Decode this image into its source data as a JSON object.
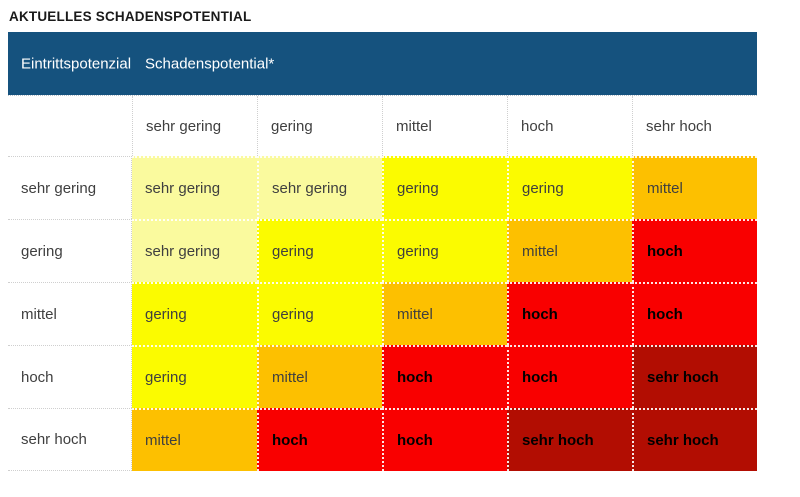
{
  "title": "AKTUELLES SCHADENSPOTENTIAL",
  "table": {
    "header": {
      "background": "#15527E",
      "text_color": "#ffffff",
      "col1_label": "Eintrittspotenzial",
      "col2_label": "Schadenspotential*"
    },
    "column_headers": [
      "sehr gering",
      "gering",
      "mittel",
      "hoch",
      "sehr hoch"
    ],
    "row_headers": [
      "sehr gering",
      "gering",
      "mittel",
      "hoch",
      "sehr hoch"
    ],
    "cells": [
      [
        "sehr gering",
        "sehr gering",
        "gering",
        "gering",
        "mittel"
      ],
      [
        "sehr gering",
        "gering",
        "gering",
        "mittel",
        "hoch"
      ],
      [
        "gering",
        "gering",
        "mittel",
        "hoch",
        "hoch"
      ],
      [
        "gering",
        "mittel",
        "hoch",
        "hoch",
        "sehr hoch"
      ],
      [
        "mittel",
        "hoch",
        "hoch",
        "sehr hoch",
        "sehr hoch"
      ]
    ],
    "levels": {
      "sehr gering": {
        "bg": "#FAFA9E",
        "text": "#3f3f3f",
        "bold": false
      },
      "gering": {
        "bg": "#FBFB00",
        "text": "#3f3f3f",
        "bold": false
      },
      "mittel": {
        "bg": "#FDC000",
        "text": "#3f3f3f",
        "bold": false
      },
      "hoch": {
        "bg": "#F90000",
        "text": "#000000",
        "bold": true
      },
      "sehr hoch": {
        "bg": "#B20D02",
        "text": "#000000",
        "bold": true
      }
    }
  },
  "chart_data": {
    "type": "heatmap",
    "title": "AKTUELLES SCHADENSPOTENTIAL",
    "x_axis_label": "Schadenspotential*",
    "y_axis_label": "Eintrittspotenzial",
    "x_categories": [
      "sehr gering",
      "gering",
      "mittel",
      "hoch",
      "sehr hoch"
    ],
    "y_categories": [
      "sehr gering",
      "gering",
      "mittel",
      "hoch",
      "sehr hoch"
    ],
    "values": [
      [
        "sehr gering",
        "sehr gering",
        "gering",
        "gering",
        "mittel"
      ],
      [
        "sehr gering",
        "gering",
        "gering",
        "mittel",
        "hoch"
      ],
      [
        "gering",
        "gering",
        "mittel",
        "hoch",
        "hoch"
      ],
      [
        "gering",
        "mittel",
        "hoch",
        "hoch",
        "sehr hoch"
      ],
      [
        "mittel",
        "hoch",
        "hoch",
        "sehr hoch",
        "sehr hoch"
      ]
    ],
    "scale": [
      "sehr gering",
      "gering",
      "mittel",
      "hoch",
      "sehr hoch"
    ],
    "scale_colors": [
      "#FAFA9E",
      "#FBFB00",
      "#FDC000",
      "#F90000",
      "#B20D02"
    ],
    "legend": "none",
    "grid": "dotted-separators"
  }
}
